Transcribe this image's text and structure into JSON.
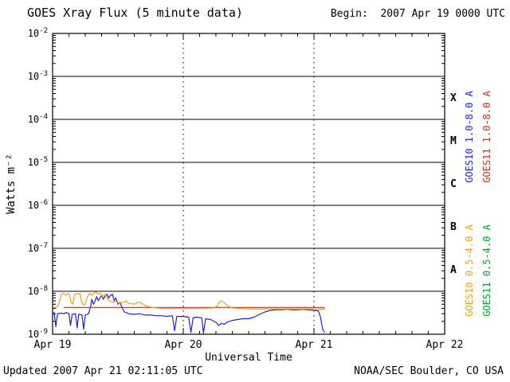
{
  "header": {
    "title": "GOES Xray Flux (5 minute data)",
    "begin_label": "Begin:  2007 Apr 19 0000 UTC"
  },
  "footer": {
    "updated": "Updated 2007 Apr 21 02:11:05 UTC",
    "credit": "NOAA/SEC Boulder, CO USA"
  },
  "chart_data": {
    "type": "line",
    "title": "GOES Xray Flux (5 minute data)",
    "xlabel": "Universal Time",
    "ylabel": "Watts m⁻²",
    "x_unit": "hours since 2007 Apr 19 0000 UTC",
    "xlim": [
      0,
      72
    ],
    "ylim_log10": [
      -9,
      -2
    ],
    "y_scale": "log",
    "grid": "solid horizontal line at each decade; dotted vertical line at each day boundary",
    "x_major_ticks": [
      0,
      24,
      48,
      72
    ],
    "x_tick_labels": [
      "Apr 19",
      "Apr 20",
      "Apr 21",
      "Apr 22"
    ],
    "x_dotted": [
      24,
      48
    ],
    "y_tick_exponents": [
      -2,
      -3,
      -4,
      -5,
      -6,
      -7,
      -8,
      -9
    ],
    "flare_classes": [
      {
        "label": "X",
        "log10_mid": -3.5
      },
      {
        "label": "M",
        "log10_mid": -4.5
      },
      {
        "label": "C",
        "log10_mid": -5.5
      },
      {
        "label": "B",
        "log10_mid": -6.5
      },
      {
        "label": "A",
        "log10_mid": -7.5
      }
    ],
    "legend_position": "right, rotated 90deg",
    "series": [
      {
        "id": "goes10-long",
        "name": "GOES10 1.0-8.0 A",
        "color": "#2222cc",
        "points": [
          [
            0,
            3e-09
          ],
          [
            0.3,
            3.2e-09
          ],
          [
            0.6,
            1.5e-09
          ],
          [
            0.9,
            3e-09
          ],
          [
            1.5,
            3.1e-09
          ],
          [
            2,
            3e-09
          ],
          [
            2.5,
            3.2e-09
          ],
          [
            3,
            3e-09
          ],
          [
            3.3,
            1.6e-09
          ],
          [
            3.6,
            2.9e-09
          ],
          [
            4.2,
            3e-09
          ],
          [
            4.5,
            1.4e-09
          ],
          [
            4.8,
            2.9e-09
          ],
          [
            5.4,
            2.8e-09
          ],
          [
            5.7,
            1.3e-09
          ],
          [
            6,
            2.8e-09
          ],
          [
            6.6,
            3e-09
          ],
          [
            7,
            4.5e-09
          ],
          [
            7.2,
            6.5e-09
          ],
          [
            7.5,
            5e-09
          ],
          [
            7.8,
            6e-09
          ],
          [
            8.1,
            7.5e-09
          ],
          [
            8.4,
            6e-09
          ],
          [
            8.7,
            7e-09
          ],
          [
            9,
            8e-09
          ],
          [
            9.3,
            6.5e-09
          ],
          [
            9.6,
            7.5e-09
          ],
          [
            10,
            8.5e-09
          ],
          [
            10.3,
            7e-09
          ],
          [
            10.6,
            8e-09
          ],
          [
            11,
            8.5e-09
          ],
          [
            11.3,
            6e-09
          ],
          [
            11.6,
            7e-09
          ],
          [
            12,
            5e-09
          ],
          [
            12.4,
            5.5e-09
          ],
          [
            12.8,
            4e-09
          ],
          [
            13.2,
            3.3e-09
          ],
          [
            14,
            3e-09
          ],
          [
            15,
            2.9e-09
          ],
          [
            16,
            3e-09
          ],
          [
            17,
            2.8e-09
          ],
          [
            18,
            2.8e-09
          ],
          [
            19,
            2.7e-09
          ],
          [
            20,
            2.7e-09
          ],
          [
            21,
            2.6e-09
          ],
          [
            22,
            2.7e-09
          ],
          [
            22.4,
            1.2e-09
          ],
          [
            22.8,
            2.6e-09
          ],
          [
            24,
            2.6e-09
          ],
          [
            25,
            2.5e-09
          ],
          [
            25.4,
            1.1e-09
          ],
          [
            25.8,
            2.4e-09
          ],
          [
            26.5,
            2.5e-09
          ],
          [
            27.4,
            2.4e-09
          ],
          [
            27.7,
            1.05e-09
          ],
          [
            28.1,
            2.3e-09
          ],
          [
            29,
            2.2e-09
          ],
          [
            30,
            1.9e-09
          ],
          [
            30.5,
            1.6e-09
          ],
          [
            31,
            1.8e-09
          ],
          [
            31.5,
            1.7e-09
          ],
          [
            32,
            1.9e-09
          ],
          [
            33,
            2.1e-09
          ],
          [
            34,
            2.2e-09
          ],
          [
            35,
            2.3e-09
          ],
          [
            36,
            2.3e-09
          ],
          [
            37,
            2.5e-09
          ],
          [
            38,
            2.9e-09
          ],
          [
            39,
            3.3e-09
          ],
          [
            40,
            3.6e-09
          ],
          [
            41,
            3.7e-09
          ],
          [
            42,
            3.7e-09
          ],
          [
            43,
            3.8e-09
          ],
          [
            44,
            3.7e-09
          ],
          [
            45,
            3.7e-09
          ],
          [
            46,
            3.8e-09
          ],
          [
            47,
            3.7e-09
          ],
          [
            48,
            3.6e-09
          ],
          [
            48.8,
            3.5e-09
          ],
          [
            49.2,
            2.5e-09
          ],
          [
            49.6,
            1.3e-09
          ],
          [
            50,
            1.1e-09
          ]
        ]
      },
      {
        "id": "goes11-long",
        "name": "GOES11 1.0-8.0 A",
        "color": "#bb3322",
        "points": [
          [
            2,
            4.2e-09
          ],
          [
            10,
            4.2e-09
          ],
          [
            20,
            4.2e-09
          ],
          [
            30,
            4.2e-09
          ],
          [
            40,
            4.2e-09
          ],
          [
            49,
            4.2e-09
          ],
          [
            50,
            4.1e-09
          ]
        ]
      },
      {
        "id": "goes10-short",
        "name": "GOES10 0.5-4.0 A",
        "color": "#e8a020",
        "points": [
          [
            0,
            4.5e-09
          ],
          [
            0.5,
            4.2e-09
          ],
          [
            1.0,
            4.5e-09
          ],
          [
            1.3,
            6e-09
          ],
          [
            1.6,
            8.5e-09
          ],
          [
            2,
            9e-09
          ],
          [
            2.4,
            8e-09
          ],
          [
            2.8,
            9e-09
          ],
          [
            3.1,
            8.5e-09
          ],
          [
            3.4,
            5.5e-09
          ],
          [
            3.7,
            5e-09
          ],
          [
            4,
            8e-09
          ],
          [
            4.3,
            9e-09
          ],
          [
            4.7,
            8.5e-09
          ],
          [
            5,
            9e-09
          ],
          [
            5.3,
            6e-09
          ],
          [
            5.6,
            4.8e-09
          ],
          [
            6,
            5e-09
          ],
          [
            6.4,
            7.5e-09
          ],
          [
            6.8,
            9e-09
          ],
          [
            7.2,
            8e-09
          ],
          [
            7.6,
            9e-09
          ],
          [
            8,
            9.5e-09
          ],
          [
            8.4,
            8.5e-09
          ],
          [
            8.8,
            9e-09
          ],
          [
            9.2,
            7.5e-09
          ],
          [
            9.6,
            8.5e-09
          ],
          [
            10,
            7e-09
          ],
          [
            10.4,
            6e-09
          ],
          [
            11,
            5.5e-09
          ],
          [
            11.6,
            5.8e-09
          ],
          [
            12.2,
            5.2e-09
          ],
          [
            13,
            5.5e-09
          ],
          [
            13.5,
            6e-09
          ],
          [
            14,
            5.2e-09
          ],
          [
            15,
            5e-09
          ],
          [
            15.8,
            5.6e-09
          ],
          [
            16.4,
            5.2e-09
          ],
          [
            17,
            4.6e-09
          ],
          [
            18,
            4.3e-09
          ],
          [
            19,
            4.1e-09
          ],
          [
            20,
            4e-09
          ],
          [
            22,
            4e-09
          ],
          [
            24,
            4e-09
          ],
          [
            26,
            4e-09
          ],
          [
            28,
            4e-09
          ],
          [
            29.5,
            4.1e-09
          ],
          [
            30.2,
            4.5e-09
          ],
          [
            30.6,
            5.6e-09
          ],
          [
            31,
            6e-09
          ],
          [
            31.4,
            5.6e-09
          ],
          [
            31.8,
            5e-09
          ],
          [
            32.4,
            4.4e-09
          ],
          [
            33,
            4.1e-09
          ],
          [
            34,
            4e-09
          ],
          [
            36,
            3.9e-09
          ],
          [
            38,
            3.9e-09
          ],
          [
            40,
            3.9e-09
          ],
          [
            42,
            3.9e-09
          ],
          [
            44,
            3.9e-09
          ],
          [
            46,
            3.9e-09
          ],
          [
            48,
            3.9e-09
          ],
          [
            49,
            3.8e-09
          ],
          [
            50,
            3.8e-09
          ]
        ]
      },
      {
        "id": "goes11-short",
        "name": "GOES11 0.5-4.0 A",
        "color": "#00a030",
        "points": []
      }
    ]
  }
}
